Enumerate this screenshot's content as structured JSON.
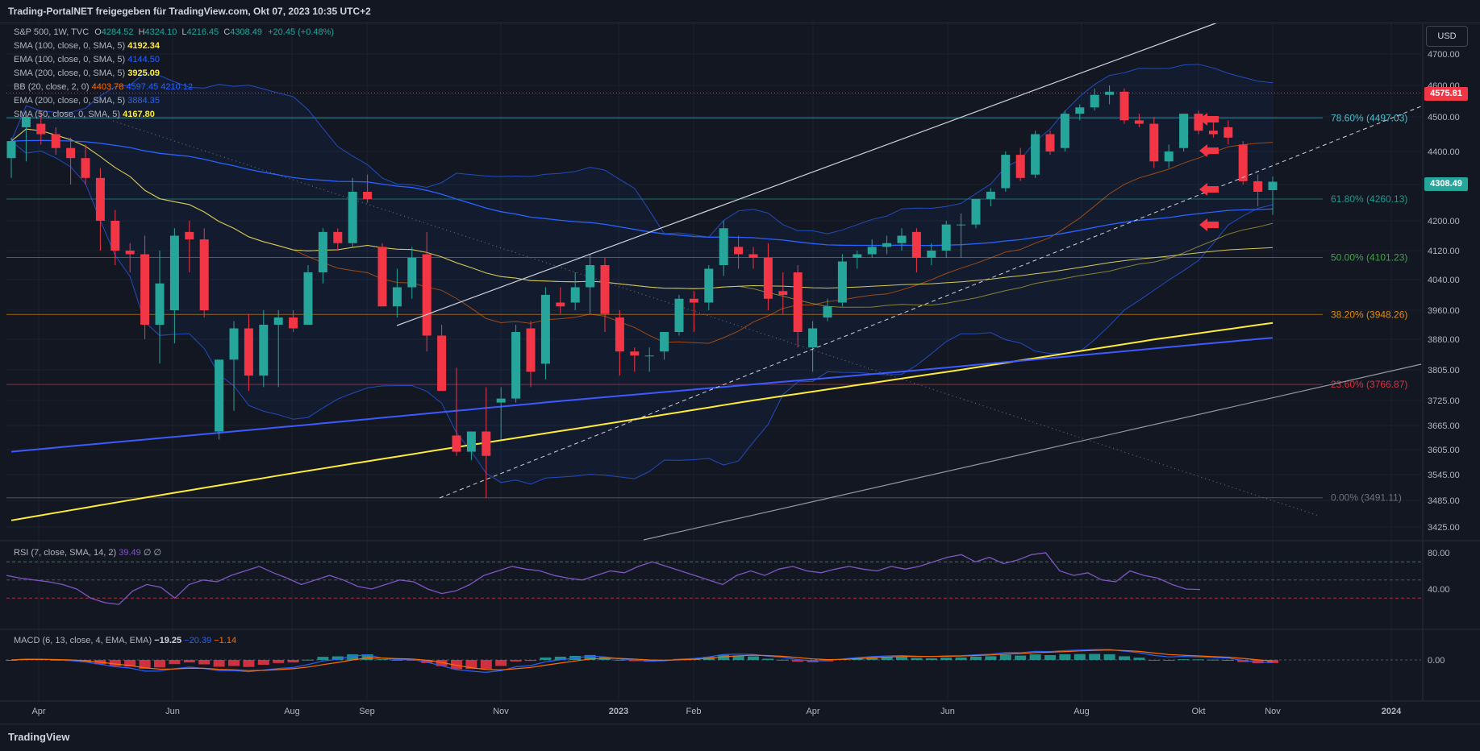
{
  "header": {
    "title": "Trading-PortalNET freigegeben für TradingView.com, Okt 07, 2023 10:35 UTC+2"
  },
  "footer": {
    "brand": "TradingView"
  },
  "currency_button": "USD",
  "legend": {
    "main": {
      "label": "S&P 500, 1W, TVC",
      "o_label": "O",
      "o": "4284.52",
      "h_label": "H",
      "h": "4324.10",
      "l_label": "L",
      "l": "4216.45",
      "c_label": "C",
      "c": "4308.49",
      "change": "+20.45 (+0.48%)"
    },
    "indicators": [
      {
        "label": "SMA (100, close, 0, SMA, 5)",
        "value": "4192.34",
        "color": "#ffeb3b"
      },
      {
        "label": "EMA (100, close, 0, SMA, 5)",
        "value": "4144.50",
        "color": "#2962ff"
      },
      {
        "label": "SMA (200, close, 0, SMA, 5)",
        "value": "3925.09",
        "color": "#ffeb3b"
      },
      {
        "label": "BB (20, close, 2, 0)",
        "value": "4403.78",
        "value2": "4597.45",
        "value3": "4210.12",
        "color": "#ff6d00",
        "color2": "#2962ff"
      },
      {
        "label": "EMA (200, close, 0, SMA, 5)",
        "value": "3884.35",
        "color": "#2962ff"
      },
      {
        "label": "SMA (50, close, 0, SMA, 5)",
        "value": "4167.80",
        "color": "#ffeb3b"
      }
    ],
    "rsi": {
      "label": "RSI (7, close, SMA, 14, 2)",
      "value": "39.49",
      "extra": "∅ ∅"
    },
    "macd": {
      "label": "MACD (6, 13, close, 4, EMA, EMA)",
      "v1": "−19.25",
      "v2": "−20.39",
      "v3": "−1.14"
    }
  },
  "price_tags": {
    "high_line": "4575.81",
    "last": "4308.49"
  },
  "colors": {
    "up": "#26a69a",
    "down": "#f23645",
    "bg": "#131722",
    "grid": "#1e222d",
    "sma": "#ffeb3b",
    "ema": "#2962ff",
    "bb": "#2962ff",
    "bb_basis": "#ff6d00",
    "rsi": "#7e57c2"
  },
  "chart_data": {
    "type": "candlestick",
    "y_axis_ticks": [
      "4700.00",
      "4600.00",
      "4500.00",
      "4400.00",
      "4300.00",
      "4200.00",
      "4120.00",
      "4040.00",
      "3960.00",
      "3880.00",
      "3805.00",
      "3725.00",
      "3665.00",
      "3605.00",
      "3545.00",
      "3485.00",
      "3425.00"
    ],
    "x_axis_ticks": [
      "Apr",
      "Jun",
      "Aug",
      "Sep",
      "Nov",
      "2023",
      "Feb",
      "Apr",
      "Jun",
      "Aug",
      "Okt",
      "Nov",
      "2024"
    ],
    "candles": [
      {
        "o": 4380,
        "h": 4440,
        "l": 4320,
        "c": 4430
      },
      {
        "o": 4470,
        "h": 4500,
        "l": 4370,
        "c": 4500
      },
      {
        "o": 4480,
        "h": 4520,
        "l": 4420,
        "c": 4450
      },
      {
        "o": 4450,
        "h": 4470,
        "l": 4390,
        "c": 4410
      },
      {
        "o": 4410,
        "h": 4440,
        "l": 4300,
        "c": 4380
      },
      {
        "o": 4380,
        "h": 4420,
        "l": 4300,
        "c": 4320
      },
      {
        "o": 4320,
        "h": 4350,
        "l": 4120,
        "c": 4200
      },
      {
        "o": 4200,
        "h": 4230,
        "l": 4080,
        "c": 4120
      },
      {
        "o": 4120,
        "h": 4140,
        "l": 4060,
        "c": 4110
      },
      {
        "o": 4110,
        "h": 4160,
        "l": 3880,
        "c": 3920
      },
      {
        "o": 3920,
        "h": 4120,
        "l": 3820,
        "c": 4030
      },
      {
        "o": 3960,
        "h": 4180,
        "l": 3870,
        "c": 4160
      },
      {
        "o": 4170,
        "h": 4200,
        "l": 4060,
        "c": 4150
      },
      {
        "o": 4150,
        "h": 4180,
        "l": 3940,
        "c": 3960
      },
      {
        "o": 3650,
        "h": 3830,
        "l": 3630,
        "c": 3830
      },
      {
        "o": 3830,
        "h": 3930,
        "l": 3700,
        "c": 3910
      },
      {
        "o": 3910,
        "h": 3950,
        "l": 3750,
        "c": 3790
      },
      {
        "o": 3790,
        "h": 3960,
        "l": 3760,
        "c": 3920
      },
      {
        "o": 3920,
        "h": 3960,
        "l": 3760,
        "c": 3940
      },
      {
        "o": 3940,
        "h": 3960,
        "l": 3900,
        "c": 3910
      },
      {
        "o": 3920,
        "h": 4080,
        "l": 3920,
        "c": 4060
      },
      {
        "o": 4060,
        "h": 4180,
        "l": 4030,
        "c": 4170
      },
      {
        "o": 4170,
        "h": 4180,
        "l": 4120,
        "c": 4140
      },
      {
        "o": 4140,
        "h": 4320,
        "l": 4130,
        "c": 4280
      },
      {
        "o": 4280,
        "h": 4330,
        "l": 4250,
        "c": 4260
      },
      {
        "o": 4130,
        "h": 4140,
        "l": 3970,
        "c": 3970
      },
      {
        "o": 3970,
        "h": 4070,
        "l": 3940,
        "c": 4020
      },
      {
        "o": 4020,
        "h": 4130,
        "l": 3990,
        "c": 4100
      },
      {
        "o": 4110,
        "h": 4170,
        "l": 3850,
        "c": 3890
      },
      {
        "o": 3890,
        "h": 3920,
        "l": 3750,
        "c": 3750
      },
      {
        "o": 3640,
        "h": 3810,
        "l": 3590,
        "c": 3600
      },
      {
        "o": 3600,
        "h": 3650,
        "l": 3580,
        "c": 3650
      },
      {
        "o": 3650,
        "h": 3760,
        "l": 3490,
        "c": 3590
      },
      {
        "o": 3720,
        "h": 3760,
        "l": 3630,
        "c": 3730
      },
      {
        "o": 3730,
        "h": 3920,
        "l": 3720,
        "c": 3900
      },
      {
        "o": 3910,
        "h": 3930,
        "l": 3760,
        "c": 3800
      },
      {
        "o": 3820,
        "h": 4020,
        "l": 3780,
        "c": 4000
      },
      {
        "o": 3980,
        "h": 4020,
        "l": 3950,
        "c": 3970
      },
      {
        "o": 3980,
        "h": 4060,
        "l": 3960,
        "c": 4020
      },
      {
        "o": 4020,
        "h": 4110,
        "l": 3950,
        "c": 4080
      },
      {
        "o": 4080,
        "h": 4100,
        "l": 3900,
        "c": 3950
      },
      {
        "o": 3940,
        "h": 3960,
        "l": 3790,
        "c": 3850
      },
      {
        "o": 3850,
        "h": 3860,
        "l": 3800,
        "c": 3840
      },
      {
        "o": 3840,
        "h": 3860,
        "l": 3800,
        "c": 3840
      },
      {
        "o": 3850,
        "h": 3900,
        "l": 3830,
        "c": 3900
      },
      {
        "o": 3900,
        "h": 4000,
        "l": 3890,
        "c": 3990
      },
      {
        "o": 3990,
        "h": 4010,
        "l": 3900,
        "c": 3980
      },
      {
        "o": 3980,
        "h": 4080,
        "l": 3960,
        "c": 4070
      },
      {
        "o": 4080,
        "h": 4200,
        "l": 4050,
        "c": 4180
      },
      {
        "o": 4130,
        "h": 4160,
        "l": 4070,
        "c": 4110
      },
      {
        "o": 4110,
        "h": 4130,
        "l": 4070,
        "c": 4100
      },
      {
        "o": 4100,
        "h": 4140,
        "l": 3960,
        "c": 3990
      },
      {
        "o": 4010,
        "h": 4060,
        "l": 3950,
        "c": 4000
      },
      {
        "o": 4060,
        "h": 4080,
        "l": 3860,
        "c": 3900
      },
      {
        "o": 3860,
        "h": 3930,
        "l": 3800,
        "c": 3910
      },
      {
        "o": 3940,
        "h": 3990,
        "l": 3930,
        "c": 3970
      },
      {
        "o": 3980,
        "h": 4110,
        "l": 3970,
        "c": 4090
      },
      {
        "o": 4100,
        "h": 4120,
        "l": 4070,
        "c": 4110
      },
      {
        "o": 4110,
        "h": 4150,
        "l": 4100,
        "c": 4130
      },
      {
        "o": 4130,
        "h": 4160,
        "l": 4110,
        "c": 4140
      },
      {
        "o": 4140,
        "h": 4180,
        "l": 4120,
        "c": 4160
      },
      {
        "o": 4170,
        "h": 4180,
        "l": 4060,
        "c": 4100
      },
      {
        "o": 4100,
        "h": 4140,
        "l": 4080,
        "c": 4120
      },
      {
        "o": 4120,
        "h": 4200,
        "l": 4100,
        "c": 4190
      },
      {
        "o": 4190,
        "h": 4220,
        "l": 4100,
        "c": 4190
      },
      {
        "o": 4190,
        "h": 4260,
        "l": 4180,
        "c": 4260
      },
      {
        "o": 4260,
        "h": 4290,
        "l": 4240,
        "c": 4280
      },
      {
        "o": 4290,
        "h": 4400,
        "l": 4280,
        "c": 4390
      },
      {
        "o": 4390,
        "h": 4410,
        "l": 4310,
        "c": 4320
      },
      {
        "o": 4330,
        "h": 4460,
        "l": 4320,
        "c": 4450
      },
      {
        "o": 4450,
        "h": 4460,
        "l": 4390,
        "c": 4400
      },
      {
        "o": 4410,
        "h": 4520,
        "l": 4400,
        "c": 4510
      },
      {
        "o": 4510,
        "h": 4540,
        "l": 4490,
        "c": 4530
      },
      {
        "o": 4530,
        "h": 4590,
        "l": 4520,
        "c": 4570
      },
      {
        "o": 4570,
        "h": 4600,
        "l": 4540,
        "c": 4580
      },
      {
        "o": 4580,
        "h": 4590,
        "l": 4480,
        "c": 4490
      },
      {
        "o": 4490,
        "h": 4510,
        "l": 4470,
        "c": 4480
      },
      {
        "o": 4480,
        "h": 4500,
        "l": 4350,
        "c": 4370
      },
      {
        "o": 4370,
        "h": 4420,
        "l": 4350,
        "c": 4400
      },
      {
        "o": 4410,
        "h": 4510,
        "l": 4400,
        "c": 4510
      },
      {
        "o": 4510,
        "h": 4520,
        "l": 4450,
        "c": 4460
      },
      {
        "o": 4460,
        "h": 4500,
        "l": 4440,
        "c": 4450
      },
      {
        "o": 4470,
        "h": 4490,
        "l": 4420,
        "c": 4440
      },
      {
        "o": 4420,
        "h": 4430,
        "l": 4300,
        "c": 4310
      },
      {
        "o": 4310,
        "h": 4330,
        "l": 4240,
        "c": 4280
      },
      {
        "o": 4284.52,
        "h": 4324.1,
        "l": 4216.45,
        "c": 4308.49
      }
    ],
    "fibonacci": [
      {
        "level": "78.60%",
        "value": 4497.03,
        "label": "78.60% (4497.03)",
        "color": "#4dd0e1"
      },
      {
        "level": "61.80%",
        "value": 4260.13,
        "label": "61.80% (4260.13)",
        "color": "#26a69a"
      },
      {
        "level": "50.00%",
        "value": 4101.23,
        "label": "50.00% (4101.23)",
        "color": "#4caf50"
      },
      {
        "level": "38.20%",
        "value": 3948.26,
        "label": "38.20% (3948.26)",
        "color": "#ff9800"
      },
      {
        "level": "23.60%",
        "value": 3766.87,
        "label": "23.60% (3766.87)",
        "color": "#f23645"
      },
      {
        "level": "0.00%",
        "value": 3491.11,
        "label": "0.00% (3491.11)",
        "color": "#787b86"
      }
    ],
    "high_line_value": 4575.81,
    "rsi_ticks": [
      "80.00",
      "40.00"
    ],
    "rsi": [
      55,
      52,
      50,
      48,
      45,
      40,
      30,
      25,
      23,
      38,
      45,
      42,
      30,
      45,
      50,
      48,
      55,
      60,
      65,
      58,
      52,
      45,
      50,
      55,
      50,
      43,
      40,
      45,
      50,
      48,
      40,
      35,
      38,
      45,
      55,
      60,
      65,
      62,
      60,
      55,
      52,
      50,
      55,
      60,
      58,
      65,
      70,
      65,
      60,
      55,
      50,
      45,
      55,
      60,
      55,
      62,
      65,
      60,
      58,
      62,
      65,
      62,
      60,
      65,
      62,
      65,
      70,
      75,
      78,
      70,
      75,
      68,
      72,
      78,
      80,
      60,
      55,
      58,
      50,
      48,
      60,
      55,
      52,
      45,
      40,
      39.49
    ],
    "macd_ticks": [
      "0.00"
    ]
  }
}
